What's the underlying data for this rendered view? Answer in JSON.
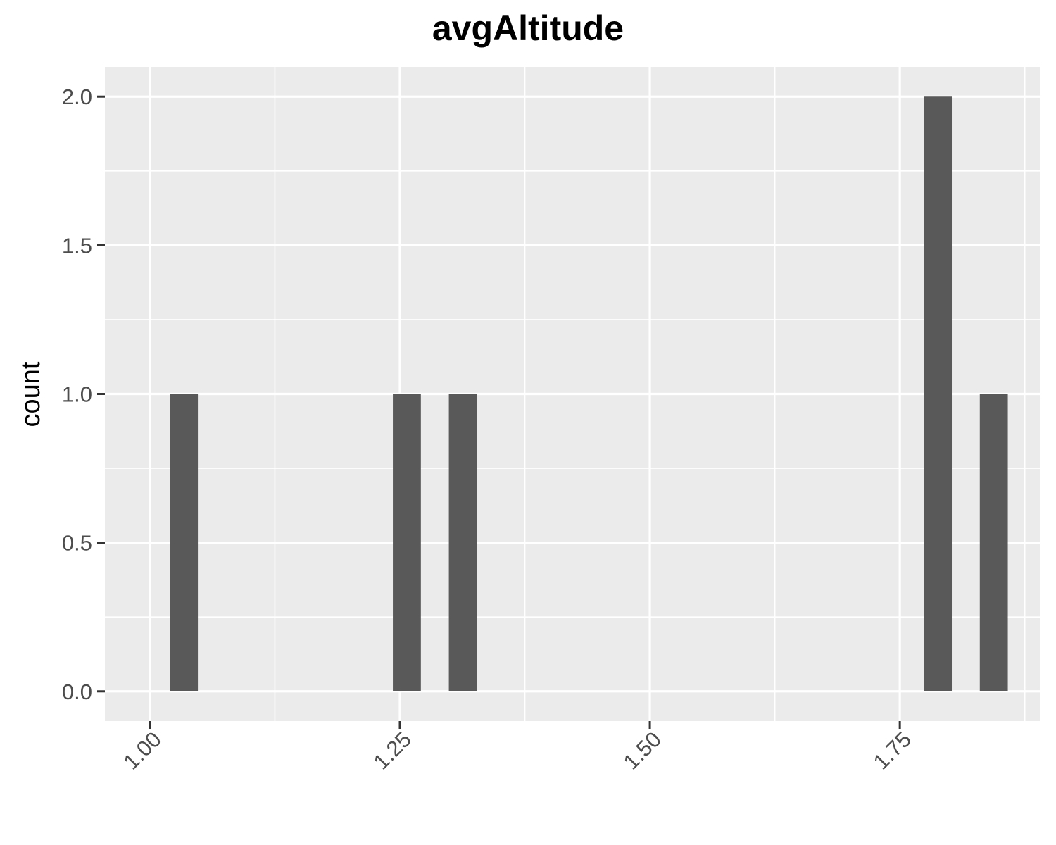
{
  "colors": {
    "panel_background": "#EBEBEB",
    "grid_major": "#FFFFFF",
    "bar_fill": "#595959",
    "tick_text": "#4D4D4D",
    "axis_ticks": "#333333"
  },
  "chart_data": {
    "type": "bar",
    "title": "avgAltitude",
    "xlabel": "",
    "ylabel": "count",
    "xlim": [
      0.955,
      1.89
    ],
    "ylim": [
      -0.1,
      2.1
    ],
    "grid": true,
    "x_ticks": [
      1.0,
      1.25,
      1.5,
      1.75
    ],
    "x_tick_labels": [
      "1.00",
      "1.25",
      "1.50",
      "1.75"
    ],
    "y_ticks": [
      0,
      0.5,
      1.0,
      1.5,
      2.0
    ],
    "y_tick_labels": [
      "0.0",
      "0.5",
      "1.0",
      "1.5",
      "2.0"
    ],
    "bin_width": 0.028,
    "bins": [
      {
        "x": 1.034,
        "count": 1
      },
      {
        "x": 1.257,
        "count": 1
      },
      {
        "x": 1.313,
        "count": 1
      },
      {
        "x": 1.788,
        "count": 2
      },
      {
        "x": 1.844,
        "count": 1
      }
    ]
  }
}
